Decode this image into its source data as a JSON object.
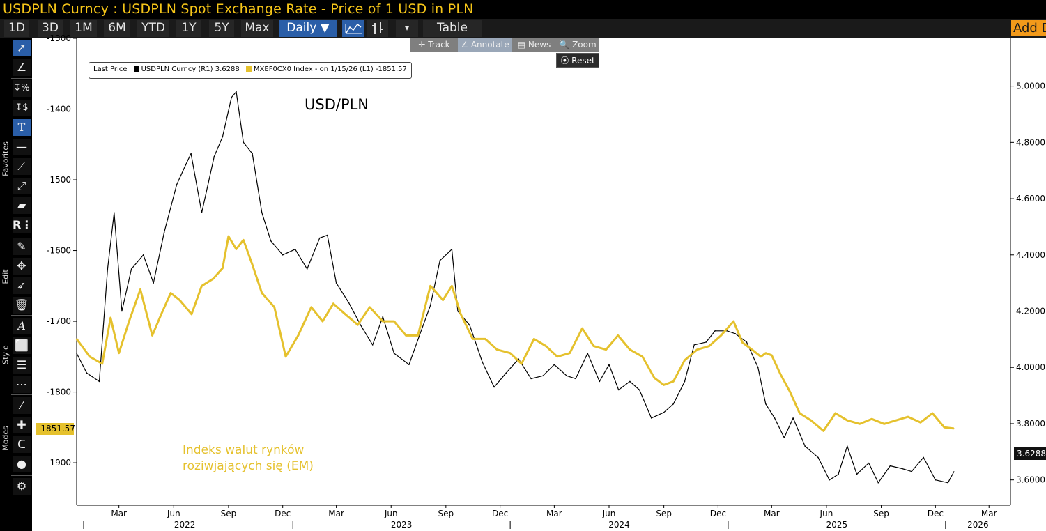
{
  "window": {
    "title": "USDPLN Curncy : USDPLN Spot Exchange Rate - Price of 1 USD in PLN"
  },
  "toolbar": {
    "ranges": [
      "1D",
      "3D",
      "1M",
      "6M",
      "YTD",
      "1Y",
      "5Y",
      "Max"
    ],
    "frequency": "Daily ▼",
    "dropdown": "▾",
    "table": "Table",
    "add": "Add D"
  },
  "chart_tools": {
    "track": "Track",
    "annotate": "Annotate",
    "news": "News",
    "zoom": "Zoom",
    "reset": "Reset"
  },
  "sidebar": {
    "groups": [
      "Favorites",
      "Edit",
      "Style",
      "Modes"
    ]
  },
  "legend": {
    "prefix": "Last Price",
    "s1": "USDPLN Curncy  (R1) 3.6288",
    "s2": "MXEF0CX0 Index -  on 1/15/26  (L1)  -1851.57"
  },
  "annotations": {
    "title": "USD/PLN",
    "line1": "Indeks walut rynków",
    "line2": "roziwjających się (EM)"
  },
  "tags": {
    "left_last": "-1851.57",
    "right_last": "3.6288"
  },
  "colors": {
    "usdpln": "#000000",
    "em": "#e5c12d",
    "accent": "#2a5ea8"
  },
  "chart_data": {
    "type": "line",
    "left_axis": {
      "ticks": [
        "-1300",
        "-1400",
        "-1500",
        "-1600",
        "-1700",
        "-1800",
        "-1900"
      ],
      "range": [
        -1300,
        -1960
      ],
      "inverted": true
    },
    "right_axis": {
      "ticks": [
        "5.0000",
        "4.8000",
        "4.6000",
        "4.4000",
        "4.2000",
        "4.0000",
        "3.8000",
        "3.6000"
      ],
      "range": [
        3.51,
        5.17
      ]
    },
    "x_axis": {
      "months": [
        "Mar",
        "Jun",
        "Sep",
        "Dec",
        "Mar",
        "Jun",
        "Sep",
        "Dec",
        "Mar",
        "Jun",
        "Sep",
        "Dec",
        "Mar",
        "Jun",
        "Sep",
        "Dec",
        "Mar"
      ],
      "years": [
        "2022",
        "2023",
        "2024",
        "2025",
        "2026"
      ],
      "range": [
        "2022-01-03",
        "2026-04-20"
      ]
    },
    "series": [
      {
        "name": "USDPLN Curncy",
        "axis": "right",
        "color": "#000000",
        "x": [
          "2022-01-03",
          "2022-01-20",
          "2022-02-10",
          "2022-02-24",
          "2022-03-07",
          "2022-03-20",
          "2022-04-05",
          "2022-04-25",
          "2022-05-12",
          "2022-05-30",
          "2022-06-20",
          "2022-07-05",
          "2022-07-14",
          "2022-08-01",
          "2022-08-22",
          "2022-09-05",
          "2022-09-20",
          "2022-09-28",
          "2022-10-10",
          "2022-10-25",
          "2022-11-10",
          "2022-11-25",
          "2022-12-15",
          "2023-01-05",
          "2023-01-25",
          "2023-02-15",
          "2023-02-28",
          "2023-03-15",
          "2023-04-05",
          "2023-04-25",
          "2023-05-15",
          "2023-06-01",
          "2023-06-20",
          "2023-07-15",
          "2023-08-01",
          "2023-08-20",
          "2023-09-05",
          "2023-09-25",
          "2023-10-05",
          "2023-10-25",
          "2023-11-15",
          "2023-12-05",
          "2023-12-25",
          "2024-01-15",
          "2024-02-05",
          "2024-02-25",
          "2024-03-15",
          "2024-04-05",
          "2024-04-20",
          "2024-05-10",
          "2024-05-30",
          "2024-06-15",
          "2024-07-01",
          "2024-07-20",
          "2024-08-05",
          "2024-08-25",
          "2024-09-15",
          "2024-10-01",
          "2024-10-20",
          "2024-11-05",
          "2024-11-25",
          "2024-12-10",
          "2024-12-30",
          "2025-01-13",
          "2025-02-01",
          "2025-02-20",
          "2025-03-05",
          "2025-03-20",
          "2025-04-05",
          "2025-04-20",
          "2025-05-10",
          "2025-06-01",
          "2025-06-20",
          "2025-07-05",
          "2025-07-20",
          "2025-08-05",
          "2025-08-25",
          "2025-09-10",
          "2025-09-30",
          "2025-10-20",
          "2025-11-05",
          "2025-11-25",
          "2025-12-15",
          "2026-01-05",
          "2026-01-15"
        ],
        "values": [
          4.05,
          3.98,
          3.95,
          4.35,
          4.55,
          4.2,
          4.35,
          4.4,
          4.3,
          4.48,
          4.65,
          4.72,
          4.76,
          4.55,
          4.75,
          4.82,
          4.96,
          4.98,
          4.8,
          4.76,
          4.55,
          4.45,
          4.4,
          4.42,
          4.35,
          4.46,
          4.47,
          4.3,
          4.23,
          4.15,
          4.08,
          4.18,
          4.05,
          4.01,
          4.11,
          4.22,
          4.38,
          4.42,
          4.2,
          4.15,
          4.02,
          3.93,
          3.98,
          4.03,
          3.96,
          3.97,
          4.01,
          3.97,
          3.96,
          4.05,
          3.95,
          4.01,
          3.92,
          3.95,
          3.92,
          3.82,
          3.84,
          3.87,
          3.95,
          4.08,
          4.09,
          4.13,
          4.13,
          4.12,
          4.09,
          4.0,
          3.87,
          3.82,
          3.75,
          3.82,
          3.72,
          3.68,
          3.6,
          3.62,
          3.72,
          3.62,
          3.66,
          3.59,
          3.65,
          3.64,
          3.63,
          3.68,
          3.6,
          3.59,
          3.6288
        ]
      },
      {
        "name": "MXEF0CX0 Index",
        "axis": "left",
        "color": "#e5c12d",
        "x": [
          "2022-01-03",
          "2022-01-25",
          "2022-02-15",
          "2022-03-01",
          "2022-03-15",
          "2022-04-01",
          "2022-04-20",
          "2022-05-10",
          "2022-05-25",
          "2022-06-10",
          "2022-06-25",
          "2022-07-15",
          "2022-08-01",
          "2022-08-20",
          "2022-09-05",
          "2022-09-15",
          "2022-09-28",
          "2022-10-10",
          "2022-10-25",
          "2022-11-10",
          "2022-12-01",
          "2022-12-20",
          "2023-01-10",
          "2023-02-01",
          "2023-02-20",
          "2023-03-10",
          "2023-03-30",
          "2023-04-20",
          "2023-05-10",
          "2023-06-01",
          "2023-06-20",
          "2023-07-10",
          "2023-07-30",
          "2023-08-20",
          "2023-09-10",
          "2023-09-25",
          "2023-10-10",
          "2023-10-30",
          "2023-11-20",
          "2023-12-10",
          "2024-01-01",
          "2024-01-20",
          "2024-02-10",
          "2024-03-01",
          "2024-03-20",
          "2024-04-10",
          "2024-05-01",
          "2024-05-20",
          "2024-06-10",
          "2024-06-30",
          "2024-07-20",
          "2024-08-10",
          "2024-08-30",
          "2024-09-15",
          "2024-10-01",
          "2024-10-20",
          "2024-11-10",
          "2024-11-30",
          "2024-12-20",
          "2025-01-10",
          "2025-01-25",
          "2025-02-10",
          "2025-02-25",
          "2025-03-05",
          "2025-03-15",
          "2025-03-30",
          "2025-04-15",
          "2025-05-01",
          "2025-05-20",
          "2025-06-10",
          "2025-06-30",
          "2025-07-20",
          "2025-08-10",
          "2025-08-30",
          "2025-09-20",
          "2025-10-10",
          "2025-10-30",
          "2025-11-20",
          "2025-12-10",
          "2025-12-30",
          "2026-01-15"
        ],
        "values": [
          -1725,
          -1750,
          -1760,
          -1695,
          -1745,
          -1700,
          -1655,
          -1720,
          -1690,
          -1660,
          -1670,
          -1690,
          -1650,
          -1640,
          -1625,
          -1580,
          -1598,
          -1585,
          -1620,
          -1660,
          -1680,
          -1750,
          -1720,
          -1680,
          -1700,
          -1675,
          -1690,
          -1705,
          -1680,
          -1700,
          -1700,
          -1720,
          -1720,
          -1650,
          -1670,
          -1650,
          -1690,
          -1725,
          -1725,
          -1740,
          -1745,
          -1760,
          -1725,
          -1735,
          -1750,
          -1745,
          -1710,
          -1735,
          -1740,
          -1720,
          -1740,
          -1750,
          -1780,
          -1790,
          -1785,
          -1755,
          -1740,
          -1735,
          -1720,
          -1700,
          -1730,
          -1740,
          -1750,
          -1745,
          -1748,
          -1775,
          -1800,
          -1830,
          -1840,
          -1855,
          -1830,
          -1840,
          -1845,
          -1838,
          -1845,
          -1840,
          -1835,
          -1843,
          -1830,
          -1850,
          -1851.57
        ]
      }
    ]
  }
}
